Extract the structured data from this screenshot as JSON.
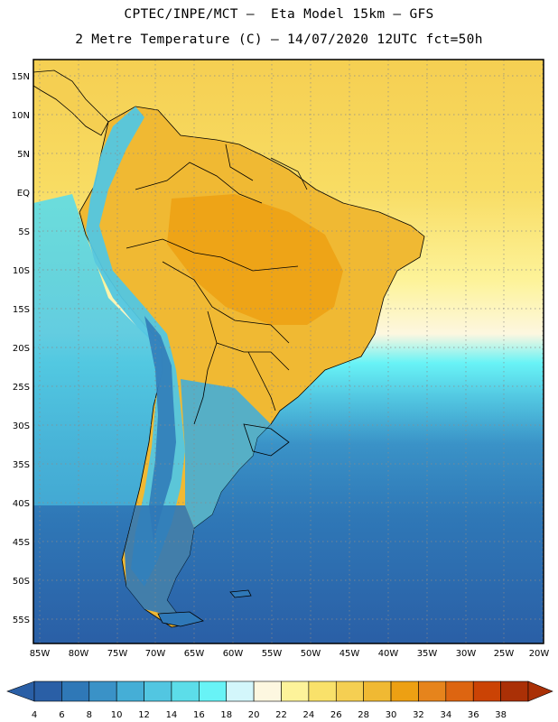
{
  "header": {
    "line1": "CPTEC/INPE/MCT –  Eta Model 15km – GFS",
    "line2": "2 Metre Temperature (C) – 14/07/2020 12UTC fct=50h"
  },
  "axes": {
    "lat_labels": [
      "15N",
      "10N",
      "5N",
      "EQ",
      "5S",
      "10S",
      "15S",
      "20S",
      "25S",
      "30S",
      "35S",
      "40S",
      "45S",
      "50S",
      "55S"
    ],
    "lon_labels": [
      "85W",
      "80W",
      "75W",
      "70W",
      "65W",
      "60W",
      "55W",
      "50W",
      "45W",
      "40W",
      "35W",
      "30W",
      "25W",
      "20W"
    ]
  },
  "colorbar": {
    "values": [
      "4",
      "6",
      "8",
      "10",
      "12",
      "14",
      "16",
      "18",
      "20",
      "22",
      "24",
      "26",
      "28",
      "30",
      "32",
      "34",
      "36",
      "38"
    ],
    "colors": [
      "#2a5fa6",
      "#2f78b7",
      "#3a92c7",
      "#45aed6",
      "#52c6e1",
      "#5cdde9",
      "#68f3f6",
      "#d3f6fb",
      "#fdf7e0",
      "#fdf39a",
      "#f9e16a",
      "#f5cf52",
      "#f0b933",
      "#eda013",
      "#e6841c",
      "#dd6511",
      "#cb4305",
      "#aa3006"
    ]
  },
  "map": {
    "land_border_color": "#000000",
    "grid_style": "dotted",
    "ocean_north_color": "#f5cf52",
    "ocean_south_color": "#2a5fa6"
  }
}
